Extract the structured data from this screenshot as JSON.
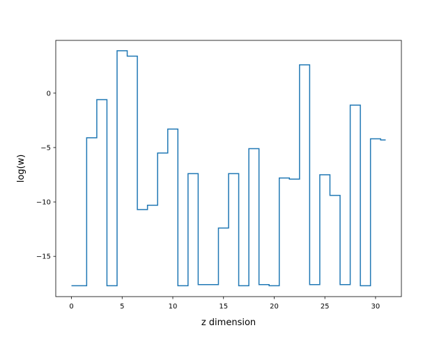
{
  "chart_data": {
    "type": "line",
    "step": "mid",
    "title": "",
    "xlabel": "z dimension",
    "ylabel": "log(w)",
    "xlim": [
      -1.55,
      32.55
    ],
    "ylim": [
      -18.7,
      4.85
    ],
    "xticks": [
      0,
      5,
      10,
      15,
      20,
      25,
      30
    ],
    "yticks": [
      -15,
      -10,
      -5,
      0
    ],
    "ytick_labels": [
      "−15",
      "−10",
      "−5",
      "0"
    ],
    "grid": false,
    "legend": null,
    "series": [
      {
        "color": "#1f77b4",
        "x": [
          0,
          1,
          2,
          3,
          4,
          5,
          6,
          7,
          8,
          9,
          10,
          11,
          12,
          13,
          14,
          15,
          16,
          17,
          18,
          19,
          20,
          21,
          22,
          23,
          24,
          25,
          26,
          27,
          28,
          29,
          30,
          31
        ],
        "values": [
          -17.7,
          -17.7,
          -4.1,
          -0.6,
          -17.7,
          3.9,
          3.4,
          -10.7,
          -10.3,
          -5.5,
          -3.3,
          -17.7,
          -7.4,
          -17.6,
          -17.6,
          -12.4,
          -7.4,
          -17.7,
          -5.1,
          -17.6,
          -17.7,
          -7.8,
          -7.9,
          2.6,
          -17.6,
          -7.5,
          -9.4,
          -17.6,
          -1.1,
          -17.7,
          -4.2,
          -4.3
        ]
      }
    ]
  }
}
